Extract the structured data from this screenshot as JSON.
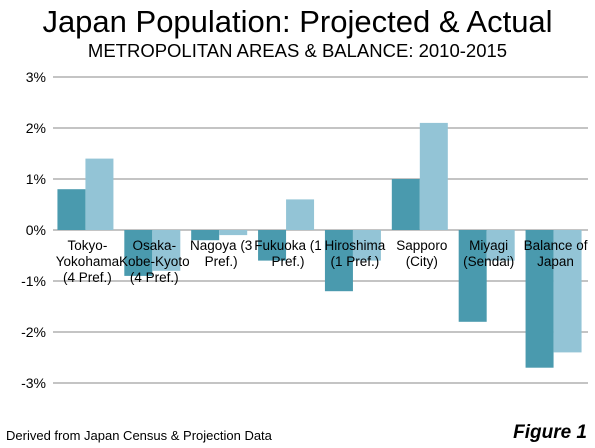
{
  "chart_data": {
    "type": "bar",
    "title": "Japan Population: Projected & Actual",
    "subtitle": "METROPOLITAN AREAS & BALANCE: 2010-2015",
    "categories": [
      [
        "Tokyo-",
        "Yokohama",
        "(4 Pref.)"
      ],
      [
        "Osaka-",
        "Kobe-Kyoto",
        "(4 Pref.)"
      ],
      [
        "Nagoya (3",
        "Pref.)"
      ],
      [
        "Fukuoka (1",
        "Pref.)"
      ],
      [
        "Hiroshima",
        "(1 Pref.)"
      ],
      [
        "Sapporo",
        "(City)"
      ],
      [
        "Miyagi",
        "(Sendai)"
      ],
      [
        "Balance of",
        "Japan"
      ]
    ],
    "series": [
      {
        "values": [
          0.8,
          -0.9,
          -0.2,
          -0.6,
          -1.2,
          1.0,
          -1.8,
          -2.7
        ],
        "color": "#4a9aae"
      },
      {
        "values": [
          1.4,
          -0.8,
          -0.1,
          0.6,
          -0.6,
          2.1,
          -0.6,
          -2.4
        ],
        "color": "#93c4d6"
      }
    ],
    "ylim": [
      -3,
      3
    ],
    "yticks": [
      3,
      2,
      1,
      0,
      -1,
      -2,
      -3
    ],
    "ytick_labels": [
      "3%",
      "2%",
      "1%",
      "0%",
      "-1%",
      "-2%",
      "-3%"
    ],
    "grid": true,
    "xlabel": "",
    "ylabel": ""
  },
  "footer": {
    "source": "Derived from Japan Census & Projection Data",
    "figure_label": "Figure 1"
  },
  "colors": {
    "gridline": "#888888",
    "axis_text": "#000000"
  }
}
